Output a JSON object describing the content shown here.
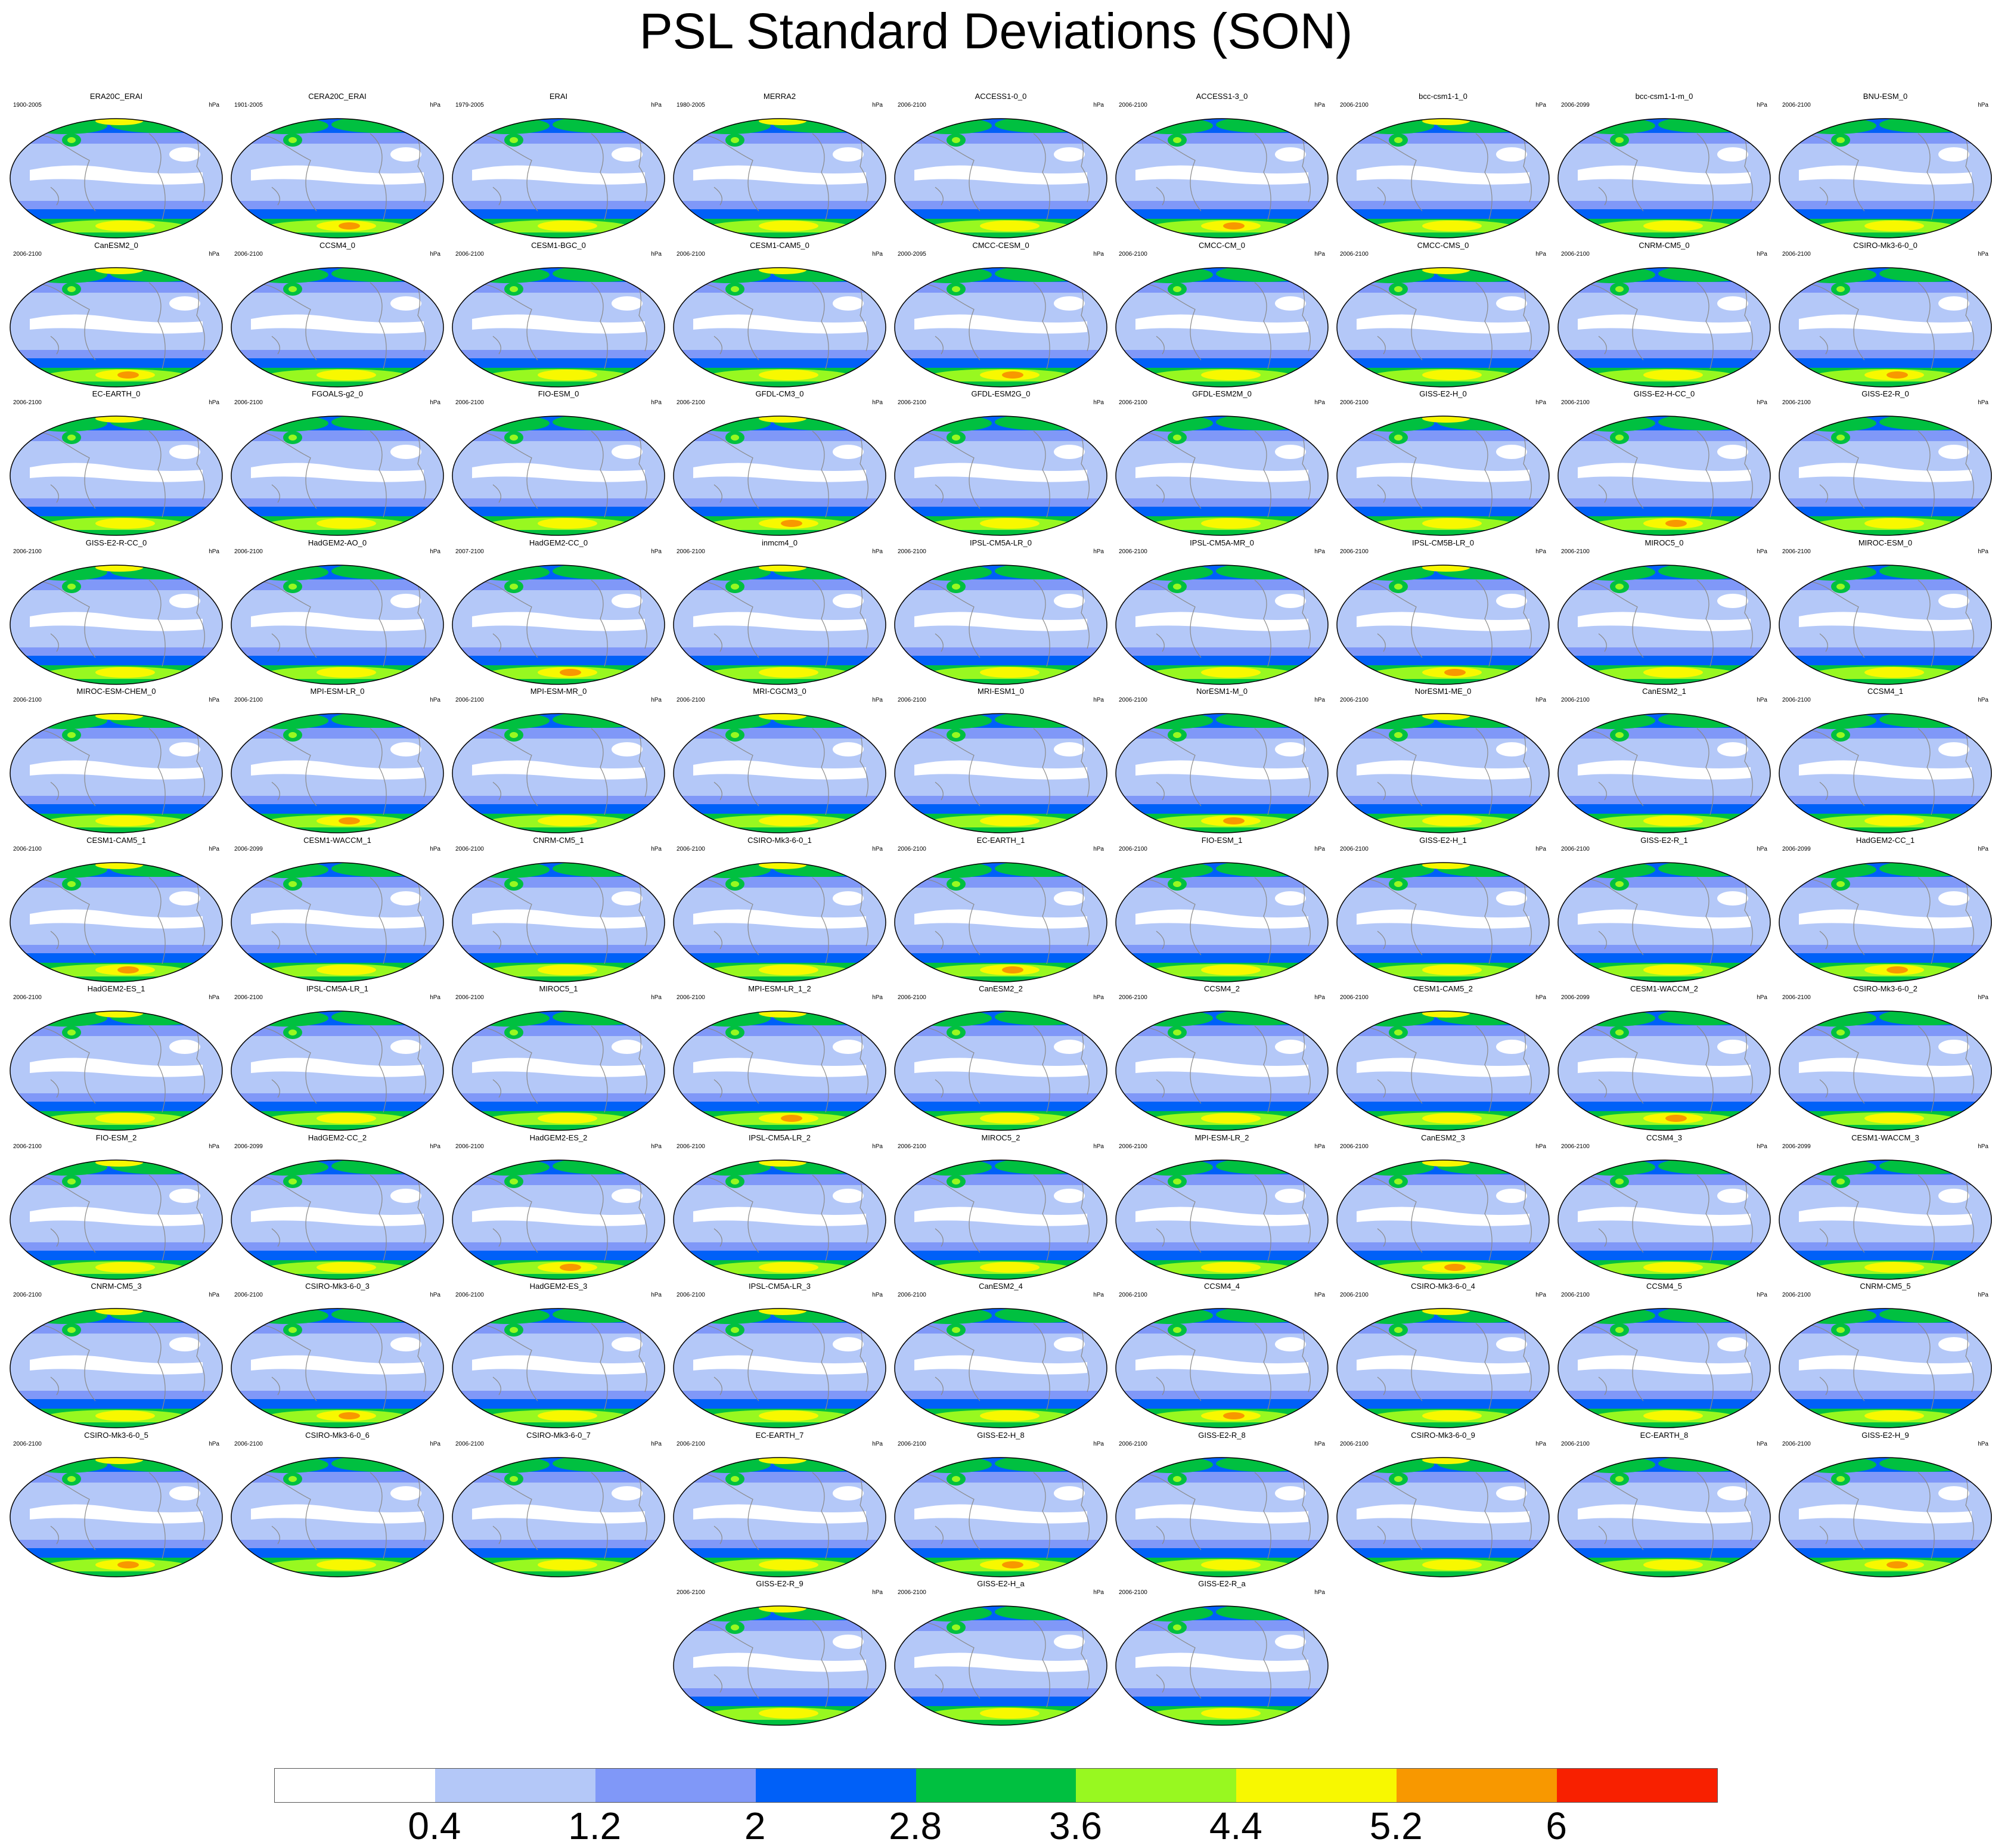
{
  "title": "PSL Standard Deviations (SON)",
  "unit": "hPa",
  "panels": [
    {
      "name": "ERA20C_ERAI",
      "years": "1900-2005"
    },
    {
      "name": "CERA20C_ERAI",
      "years": "1901-2005"
    },
    {
      "name": "ERAI",
      "years": "1979-2005"
    },
    {
      "name": "MERRA2",
      "years": "1980-2005"
    },
    {
      "name": "ACCESS1-0_0",
      "years": "2006-2100"
    },
    {
      "name": "ACCESS1-3_0",
      "years": "2006-2100"
    },
    {
      "name": "bcc-csm1-1_0",
      "years": "2006-2100"
    },
    {
      "name": "bcc-csm1-1-m_0",
      "years": "2006-2099"
    },
    {
      "name": "BNU-ESM_0",
      "years": "2006-2100"
    },
    {
      "name": "CanESM2_0",
      "years": "2006-2100"
    },
    {
      "name": "CCSM4_0",
      "years": "2006-2100"
    },
    {
      "name": "CESM1-BGC_0",
      "years": "2006-2100"
    },
    {
      "name": "CESM1-CAM5_0",
      "years": "2006-2100"
    },
    {
      "name": "CMCC-CESM_0",
      "years": "2000-2095"
    },
    {
      "name": "CMCC-CM_0",
      "years": "2006-2100"
    },
    {
      "name": "CMCC-CMS_0",
      "years": "2006-2100"
    },
    {
      "name": "CNRM-CM5_0",
      "years": "2006-2100"
    },
    {
      "name": "CSIRO-Mk3-6-0_0",
      "years": "2006-2100"
    },
    {
      "name": "EC-EARTH_0",
      "years": "2006-2100"
    },
    {
      "name": "FGOALS-g2_0",
      "years": "2006-2100"
    },
    {
      "name": "FIO-ESM_0",
      "years": "2006-2100"
    },
    {
      "name": "GFDL-CM3_0",
      "years": "2006-2100"
    },
    {
      "name": "GFDL-ESM2G_0",
      "years": "2006-2100"
    },
    {
      "name": "GFDL-ESM2M_0",
      "years": "2006-2100"
    },
    {
      "name": "GISS-E2-H_0",
      "years": "2006-2100"
    },
    {
      "name": "GISS-E2-H-CC_0",
      "years": "2006-2100"
    },
    {
      "name": "GISS-E2-R_0",
      "years": "2006-2100"
    },
    {
      "name": "GISS-E2-R-CC_0",
      "years": "2006-2100"
    },
    {
      "name": "HadGEM2-AO_0",
      "years": "2006-2100"
    },
    {
      "name": "HadGEM2-CC_0",
      "years": "2007-2100"
    },
    {
      "name": "inmcm4_0",
      "years": "2006-2100"
    },
    {
      "name": "IPSL-CM5A-LR_0",
      "years": "2006-2100"
    },
    {
      "name": "IPSL-CM5A-MR_0",
      "years": "2006-2100"
    },
    {
      "name": "IPSL-CM5B-LR_0",
      "years": "2006-2100"
    },
    {
      "name": "MIROC5_0",
      "years": "2006-2100"
    },
    {
      "name": "MIROC-ESM_0",
      "years": "2006-2100"
    },
    {
      "name": "MIROC-ESM-CHEM_0",
      "years": "2006-2100"
    },
    {
      "name": "MPI-ESM-LR_0",
      "years": "2006-2100"
    },
    {
      "name": "MPI-ESM-MR_0",
      "years": "2006-2100"
    },
    {
      "name": "MRI-CGCM3_0",
      "years": "2006-2100"
    },
    {
      "name": "MRI-ESM1_0",
      "years": "2006-2100"
    },
    {
      "name": "NorESM1-M_0",
      "years": "2006-2100"
    },
    {
      "name": "NorESM1-ME_0",
      "years": "2006-2100"
    },
    {
      "name": "CanESM2_1",
      "years": "2006-2100"
    },
    {
      "name": "CCSM4_1",
      "years": "2006-2100"
    },
    {
      "name": "CESM1-CAM5_1",
      "years": "2006-2100"
    },
    {
      "name": "CESM1-WACCM_1",
      "years": "2006-2099"
    },
    {
      "name": "CNRM-CM5_1",
      "years": "2006-2100"
    },
    {
      "name": "CSIRO-Mk3-6-0_1",
      "years": "2006-2100"
    },
    {
      "name": "EC-EARTH_1",
      "years": "2006-2100"
    },
    {
      "name": "FIO-ESM_1",
      "years": "2006-2100"
    },
    {
      "name": "GISS-E2-H_1",
      "years": "2006-2100"
    },
    {
      "name": "GISS-E2-R_1",
      "years": "2006-2100"
    },
    {
      "name": "HadGEM2-CC_1",
      "years": "2006-2099"
    },
    {
      "name": "HadGEM2-ES_1",
      "years": "2006-2100"
    },
    {
      "name": "IPSL-CM5A-LR_1",
      "years": "2006-2100"
    },
    {
      "name": "MIROC5_1",
      "years": "2006-2100"
    },
    {
      "name": "MPI-ESM-LR_1_2",
      "years": "2006-2100"
    },
    {
      "name": "CanESM2_2",
      "years": "2006-2100"
    },
    {
      "name": "CCSM4_2",
      "years": "2006-2100"
    },
    {
      "name": "CESM1-CAM5_2",
      "years": "2006-2100"
    },
    {
      "name": "CESM1-WACCM_2",
      "years": "2006-2099"
    },
    {
      "name": "CSIRO-Mk3-6-0_2",
      "years": "2006-2100"
    },
    {
      "name": "FIO-ESM_2",
      "years": "2006-2100"
    },
    {
      "name": "HadGEM2-CC_2",
      "years": "2006-2099"
    },
    {
      "name": "HadGEM2-ES_2",
      "years": "2006-2100"
    },
    {
      "name": "IPSL-CM5A-LR_2",
      "years": "2006-2100"
    },
    {
      "name": "MIROC5_2",
      "years": "2006-2100"
    },
    {
      "name": "MPI-ESM-LR_2",
      "years": "2006-2100"
    },
    {
      "name": "CanESM2_3",
      "years": "2006-2100"
    },
    {
      "name": "CCSM4_3",
      "years": "2006-2100"
    },
    {
      "name": "CESM1-WACCM_3",
      "years": "2006-2099"
    },
    {
      "name": "CNRM-CM5_3",
      "years": "2006-2100"
    },
    {
      "name": "CSIRO-Mk3-6-0_3",
      "years": "2006-2100"
    },
    {
      "name": "HadGEM2-ES_3",
      "years": "2006-2100"
    },
    {
      "name": "IPSL-CM5A-LR_3",
      "years": "2006-2100"
    },
    {
      "name": "CanESM2_4",
      "years": "2006-2100"
    },
    {
      "name": "CCSM4_4",
      "years": "2006-2100"
    },
    {
      "name": "CSIRO-Mk3-6-0_4",
      "years": "2006-2100"
    },
    {
      "name": "CCSM4_5",
      "years": "2006-2100"
    },
    {
      "name": "CNRM-CM5_5",
      "years": "2006-2100"
    },
    {
      "name": "CSIRO-Mk3-6-0_5",
      "years": "2006-2100"
    },
    {
      "name": "CSIRO-Mk3-6-0_6",
      "years": "2006-2100"
    },
    {
      "name": "CSIRO-Mk3-6-0_7",
      "years": "2006-2100"
    },
    {
      "name": "EC-EARTH_7",
      "years": "2006-2100"
    },
    {
      "name": "GISS-E2-H_8",
      "years": "2006-2100"
    },
    {
      "name": "GISS-E2-R_8",
      "years": "2006-2100"
    },
    {
      "name": "CSIRO-Mk3-6-0_9",
      "years": "2006-2100"
    },
    {
      "name": "EC-EARTH_8",
      "years": "2006-2100"
    },
    {
      "name": "GISS-E2-H_9",
      "years": "2006-2100"
    },
    {
      "name": "GISS-E2-R_9",
      "years": "2006-2100"
    },
    {
      "name": "GISS-E2-H_a",
      "years": "2006-2100"
    },
    {
      "name": "GISS-E2-R_a",
      "years": "2006-2100"
    }
  ],
  "colorbar": {
    "levels": [
      "0.4",
      "1.2",
      "2",
      "2.8",
      "3.6",
      "4.4",
      "5.2",
      "6"
    ],
    "colors": [
      "#ffffff",
      "#b4c8f8",
      "#8098f8",
      "#0060f8",
      "#00c040",
      "#98f820",
      "#f8f800",
      "#f89800",
      "#f82000"
    ]
  }
}
